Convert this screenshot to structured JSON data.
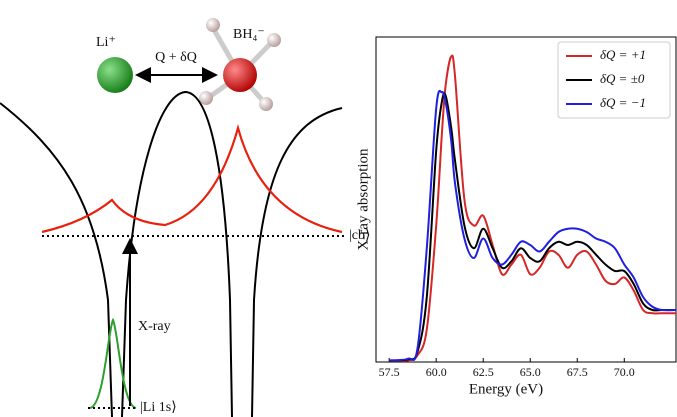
{
  "diagram": {
    "cation": "Li⁺",
    "coordinate": "Q + δQ",
    "anion": "BH₄⁻",
    "conduction": "|cb⟩",
    "xray": "X-ray",
    "core": "|Li 1s⟩"
  },
  "chart_data": {
    "type": "line",
    "xlabel": "Energy (eV)",
    "ylabel": "X-ray absorption",
    "xlim": [
      56.8,
      72.75
    ],
    "ylim": [
      0,
      1
    ],
    "xticks": [
      57.5,
      {
        "value": 60,
        "label": "60.0"
      },
      62.5,
      {
        "value": 65,
        "label": "65.0"
      },
      67.5,
      {
        "value": 70,
        "label": "70.0"
      }
    ],
    "legend": "upper right",
    "x": [
      57.5,
      58.5,
      59,
      59.5,
      60,
      60.3,
      60.5,
      60.8,
      61,
      61.5,
      62,
      62.5,
      63,
      63.5,
      64,
      64.5,
      65,
      65.5,
      66,
      66.5,
      67,
      67.5,
      68,
      68.5,
      69,
      69.5,
      70,
      70.5,
      71,
      71.5,
      72,
      72.75
    ],
    "series": [
      {
        "name": "δQ = +1",
        "color": "#d62728",
        "values": [
          0.003,
          0.005,
          0.02,
          0.1,
          0.42,
          0.7,
          0.85,
          0.94,
          0.88,
          0.5,
          0.42,
          0.45,
          0.36,
          0.27,
          0.3,
          0.33,
          0.27,
          0.29,
          0.34,
          0.33,
          0.29,
          0.33,
          0.34,
          0.3,
          0.25,
          0.24,
          0.26,
          0.22,
          0.16,
          0.15,
          0.15,
          0.15
        ]
      },
      {
        "name": "δQ = ±0",
        "color": "#000000",
        "values": [
          0.004,
          0.008,
          0.03,
          0.2,
          0.65,
          0.8,
          0.82,
          0.72,
          0.62,
          0.42,
          0.35,
          0.41,
          0.35,
          0.29,
          0.31,
          0.35,
          0.32,
          0.31,
          0.35,
          0.37,
          0.36,
          0.37,
          0.36,
          0.33,
          0.3,
          0.28,
          0.28,
          0.24,
          0.18,
          0.16,
          0.16,
          0.16
        ]
      },
      {
        "name": "δQ = −1",
        "color": "#1f1fe0",
        "values": [
          0.005,
          0.01,
          0.04,
          0.35,
          0.78,
          0.83,
          0.8,
          0.68,
          0.55,
          0.38,
          0.32,
          0.38,
          0.32,
          0.3,
          0.33,
          0.37,
          0.36,
          0.34,
          0.37,
          0.4,
          0.41,
          0.41,
          0.4,
          0.38,
          0.37,
          0.35,
          0.3,
          0.26,
          0.2,
          0.17,
          0.16,
          0.16
        ]
      }
    ]
  }
}
